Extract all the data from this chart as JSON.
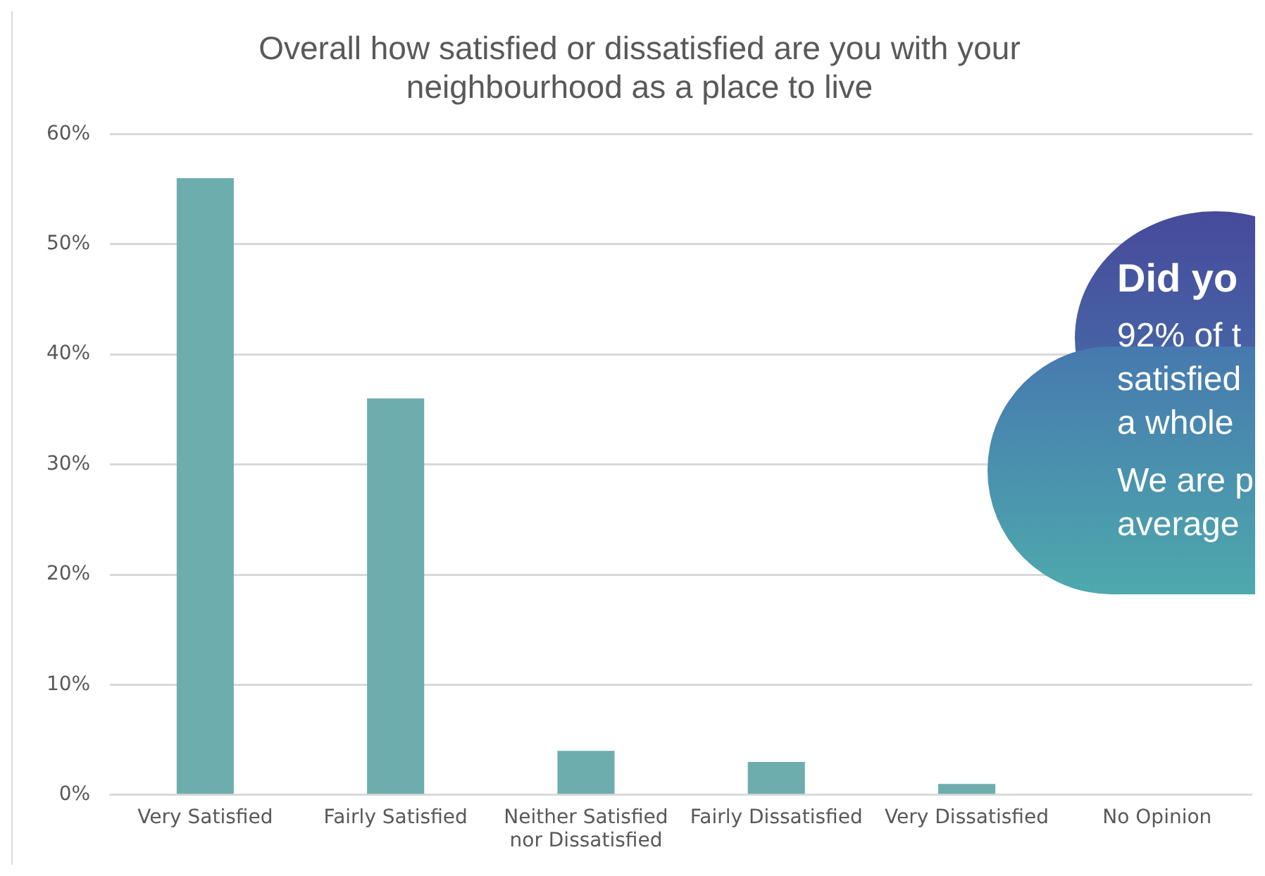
{
  "chart_data": {
    "type": "bar",
    "title": "Overall how satisfied or dissatisfied are you with your neighbourhood as a place to live",
    "categories": [
      "Very Satisfied",
      "Fairly Satisfied",
      "Neither Satisfied nor Dissatisfied",
      "Fairly Dissatisfied",
      "Very Dissatisfied",
      "No Opinion"
    ],
    "values": [
      56,
      36,
      4,
      3,
      1,
      0
    ],
    "color": "#6eadad",
    "ylim": [
      0,
      60
    ],
    "yticks": [
      {
        "value": 0,
        "label": "0%"
      },
      {
        "value": 10,
        "label": "10%"
      },
      {
        "value": 20,
        "label": "20%"
      },
      {
        "value": 30,
        "label": "30%"
      },
      {
        "value": 40,
        "label": "40%"
      },
      {
        "value": 50,
        "label": "50%"
      },
      {
        "value": 60,
        "label": "60%"
      }
    ],
    "grid": "y",
    "legend": false,
    "annotations": [
      "Did yo",
      "92% of t",
      "satisfied",
      "a whole",
      "We are p",
      "average"
    ]
  }
}
